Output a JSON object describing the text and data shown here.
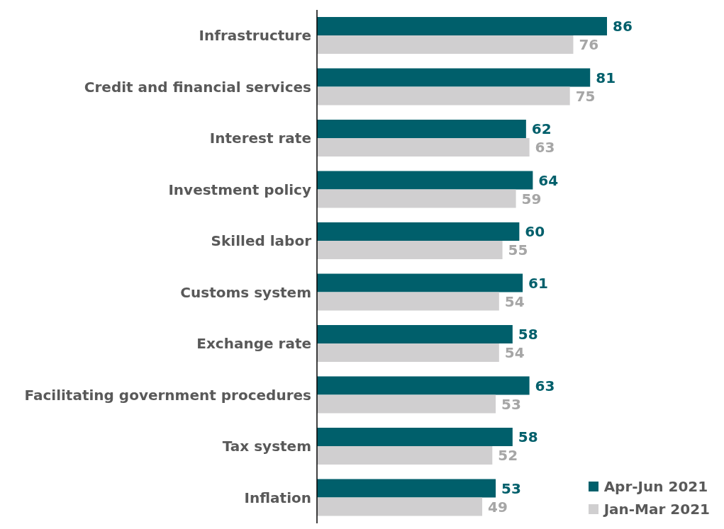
{
  "chart_data": {
    "type": "bar",
    "orientation": "horizontal",
    "data_labels": true,
    "legend": "bottom right",
    "categories": [
      "Infrastructure",
      "Credit and financial services",
      "Interest rate",
      "Investment policy",
      "Skilled labor",
      "Customs system",
      "Exchange rate",
      "Facilitating government procedures",
      "Tax system",
      "Inflation"
    ],
    "series": [
      {
        "name": "Apr-Jun 2021",
        "color": "#005f6b",
        "values": [
          86,
          81,
          62,
          64,
          60,
          61,
          58,
          63,
          58,
          53
        ]
      },
      {
        "name": "Jan-Mar 2021",
        "color": "#d0cfd0",
        "values": [
          76,
          75,
          63,
          59,
          55,
          54,
          54,
          53,
          52,
          49
        ]
      }
    ]
  }
}
